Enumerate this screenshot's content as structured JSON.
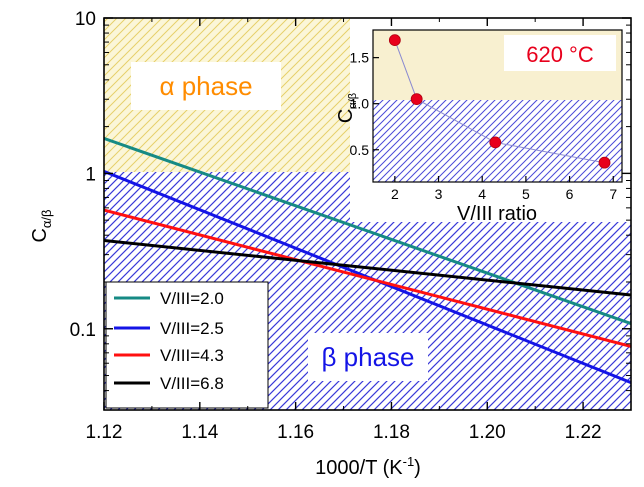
{
  "chart_data": [
    {
      "type": "line",
      "xlabel_base": "1000/T (K",
      "xlabel_sup": "-1",
      "xlabel_tail": ")",
      "ylabel_base": "C",
      "ylabel_sub": "α/β",
      "xlim": [
        1.12,
        1.23
      ],
      "ylim": [
        0.03,
        10
      ],
      "yscale": "log",
      "x_ticks": [
        "1.12",
        "1.14",
        "1.16",
        "1.18",
        "1.20",
        "1.22"
      ],
      "y_ticks": [
        "0.1",
        "1",
        "10"
      ],
      "legend_position": "bottom-left",
      "series": [
        {
          "name": "V/III=2.0",
          "color": "#168a84",
          "x": [
            1.12,
            1.23
          ],
          "y": [
            1.68,
            0.108
          ]
        },
        {
          "name": "V/III=2.5",
          "color": "#1414e6",
          "x": [
            1.12,
            1.23
          ],
          "y": [
            1.03,
            0.045
          ]
        },
        {
          "name": "V/III=4.3",
          "color": "#ff1010",
          "x": [
            1.12,
            1.23
          ],
          "y": [
            0.58,
            0.077
          ]
        },
        {
          "name": "V/III=6.8",
          "color": "#000000",
          "x": [
            1.12,
            1.23
          ],
          "y": [
            0.37,
            0.165
          ]
        }
      ],
      "regions": [
        {
          "label": "α phase",
          "color": "#f0a020",
          "text_color": "#ff8c00"
        },
        {
          "label": "β phase",
          "color": "#3a3ad8",
          "text_color": "#1414e6"
        }
      ]
    },
    {
      "type": "scatter",
      "title": "620 °C",
      "xlabel": "V/III ratio",
      "ylabel_base": "C",
      "ylabel_sub": "α/β",
      "xlim": [
        1.5,
        7.2
      ],
      "ylim": [
        0.15,
        1.8
      ],
      "x_ticks": [
        "2",
        "3",
        "4",
        "5",
        "6",
        "7"
      ],
      "y_ticks": [
        "0.5",
        "1.0",
        "1.5"
      ],
      "points": {
        "x": [
          2.0,
          2.5,
          4.3,
          6.8
        ],
        "y": [
          1.69,
          1.05,
          0.58,
          0.36
        ]
      },
      "marker_color": "#e8001c"
    }
  ]
}
